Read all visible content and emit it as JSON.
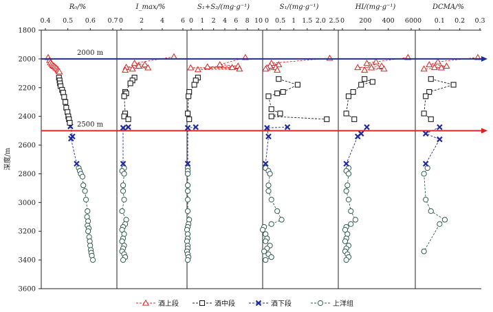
{
  "chart_data": {
    "type": "scatter",
    "y_axis": {
      "label": "深度/m",
      "lim": [
        1800,
        3600
      ],
      "ticks": [
        1800,
        2000,
        2200,
        2400,
        2600,
        2800,
        3000,
        3200,
        3400,
        3600
      ],
      "inverted": true
    },
    "reference_lines": [
      {
        "depth": 2000,
        "label": "2000 m",
        "color": "#1f2a9c"
      },
      {
        "depth": 2500,
        "label": "2500 m",
        "color": "#e02020"
      }
    ],
    "legend": {
      "position": "bottom",
      "entries": [
        {
          "key": "jiu_upper",
          "label": "酒上段",
          "color": "#e02020",
          "marker": "triangle"
        },
        {
          "key": "jiu_middle",
          "label": "酒中段",
          "color": "#1a1a1a",
          "marker": "square"
        },
        {
          "key": "jiu_lower",
          "label": "酒下段",
          "color": "#1f2a9c",
          "marker": "x"
        },
        {
          "key": "shangyang",
          "label": "上洋组",
          "color": "#2e5b4f",
          "marker": "circle"
        }
      ]
    },
    "panels": [
      {
        "id": "ro",
        "title": "R₀/%",
        "xlim": [
          0.35,
          0.7
        ],
        "ticks": [
          0.4,
          0.5,
          0.6,
          0.7
        ],
        "tick_labels": [
          "0.4",
          "0.5",
          "0.6",
          "0.7"
        ],
        "minor_tick_labels": [
          "0.4",
          "0.5",
          "0.6",
          "0.7"
        ],
        "series": {
          "jiu_upper": [
            [
              0.383,
              1990
            ],
            [
              0.39,
              2010
            ],
            [
              0.394,
              2025
            ],
            [
              0.4,
              2035
            ],
            [
              0.405,
              2045
            ],
            [
              0.41,
              2050
            ],
            [
              0.415,
              2055
            ],
            [
              0.42,
              2062
            ],
            [
              0.425,
              2068
            ],
            [
              0.43,
              2075
            ],
            [
              0.433,
              2083
            ],
            [
              0.437,
              2090
            ]
          ],
          "jiu_middle": [
            [
              0.435,
              2130
            ],
            [
              0.438,
              2150
            ],
            [
              0.44,
              2170
            ],
            [
              0.443,
              2190
            ],
            [
              0.45,
              2215
            ],
            [
              0.455,
              2235
            ],
            [
              0.46,
              2265
            ],
            [
              0.466,
              2300
            ],
            [
              0.47,
              2340
            ],
            [
              0.476,
              2370
            ],
            [
              0.48,
              2400
            ],
            [
              0.483,
              2420
            ],
            [
              0.487,
              2445
            ]
          ],
          "jiu_lower": [
            [
              0.49,
              2470
            ],
            [
              0.5,
              2540
            ],
            [
              0.493,
              2555
            ],
            [
              0.52,
              2730
            ]
          ],
          "shangyang": [
            [
              0.53,
              2760
            ],
            [
              0.535,
              2780
            ],
            [
              0.54,
              2800
            ],
            [
              0.548,
              2820
            ],
            [
              0.552,
              2880
            ],
            [
              0.56,
              2920
            ],
            [
              0.565,
              2980
            ],
            [
              0.572,
              3060
            ],
            [
              0.57,
              3100
            ],
            [
              0.575,
              3130
            ],
            [
              0.572,
              3160
            ],
            [
              0.578,
              3180
            ],
            [
              0.575,
              3200
            ],
            [
              0.58,
              3240
            ],
            [
              0.583,
              3270
            ],
            [
              0.585,
              3300
            ],
            [
              0.588,
              3330
            ],
            [
              0.59,
              3350
            ],
            [
              0.593,
              3370
            ],
            [
              0.598,
              3400
            ]
          ]
        }
      },
      {
        "id": "imax",
        "title": "I_max/%",
        "xlim": [
          -0.5,
          6
        ],
        "ticks": [
          0,
          2,
          4,
          6
        ],
        "tick_labels": [
          "0",
          "2",
          "4",
          "6"
        ],
        "series": {
          "jiu_upper": [
            [
              5.0,
              1985
            ],
            [
              1.2,
              2030
            ],
            [
              2.2,
              2040
            ],
            [
              1.6,
              2050
            ],
            [
              0.4,
              2058
            ],
            [
              2.5,
              2062
            ],
            [
              1.0,
              2070
            ],
            [
              0.3,
              2078
            ]
          ],
          "jiu_middle": [
            [
              1.2,
              2130
            ],
            [
              1.0,
              2150
            ],
            [
              0.8,
              2170
            ],
            [
              0.3,
              2230
            ],
            [
              0.4,
              2240
            ],
            [
              0.2,
              2260
            ],
            [
              0.3,
              2380
            ],
            [
              0.2,
              2400
            ],
            [
              0.6,
              2420
            ]
          ],
          "jiu_lower": [
            [
              0.6,
              2475
            ],
            [
              0.1,
              2480
            ],
            [
              0.1,
              2730
            ]
          ],
          "shangyang": [
            [
              0.2,
              2760
            ],
            [
              0.0,
              2780
            ],
            [
              0.2,
              2800
            ],
            [
              0.1,
              2880
            ],
            [
              0.1,
              2920
            ],
            [
              0.2,
              2980
            ],
            [
              0.0,
              3060
            ],
            [
              0.4,
              3120
            ],
            [
              0.3,
              3150
            ],
            [
              0.1,
              3170
            ],
            [
              0.0,
              3190
            ],
            [
              0.2,
              3220
            ],
            [
              0.1,
              3250
            ],
            [
              0.0,
              3270
            ],
            [
              0.2,
              3300
            ],
            [
              0.1,
              3320
            ],
            [
              0.0,
              3340
            ],
            [
              0.2,
              3360
            ],
            [
              0.3,
              3380
            ],
            [
              0.1,
              3400
            ]
          ]
        }
      },
      {
        "id": "s1s2",
        "title": "S₁+S₂/(mg·g⁻¹)",
        "xlim": [
          0,
          10
        ],
        "ticks": [
          0,
          1,
          2,
          3,
          4,
          5,
          6,
          7,
          8,
          9,
          10
        ],
        "tick_labels": [
          "0",
          "1",
          "2",
          "4",
          "6",
          "8",
          "10"
        ],
        "series": {
          "jiu_upper": [
            [
              8.0,
              1990
            ],
            [
              4.5,
              2040
            ],
            [
              7.0,
              2050
            ],
            [
              2.8,
              2055
            ],
            [
              6.2,
              2060
            ],
            [
              0.5,
              2062
            ],
            [
              7.2,
              2070
            ],
            [
              1.5,
              2075
            ]
          ],
          "jiu_middle": [
            [
              1.5,
              2130
            ],
            [
              1.2,
              2150
            ],
            [
              1.0,
              2180
            ],
            [
              0.3,
              2230
            ],
            [
              0.2,
              2260
            ],
            [
              0.1,
              2380
            ],
            [
              0.3,
              2420
            ]
          ],
          "jiu_lower": [
            [
              1.2,
              2475
            ],
            [
              0.1,
              2480
            ],
            [
              0.1,
              2730
            ]
          ],
          "shangyang": [
            [
              0.1,
              2760
            ],
            [
              0.1,
              2780
            ],
            [
              0.1,
              2800
            ],
            [
              0.1,
              2880
            ],
            [
              0.1,
              2920
            ],
            [
              0.1,
              2980
            ],
            [
              0.1,
              3060
            ],
            [
              0.3,
              3120
            ],
            [
              0.2,
              3150
            ],
            [
              0.1,
              3170
            ],
            [
              0.0,
              3190
            ],
            [
              0.1,
              3220
            ],
            [
              0.1,
              3250
            ],
            [
              0.0,
              3270
            ],
            [
              0.1,
              3300
            ],
            [
              0.1,
              3320
            ],
            [
              0.0,
              3340
            ],
            [
              0.1,
              3360
            ],
            [
              0.2,
              3380
            ],
            [
              0.1,
              3400
            ]
          ]
        }
      },
      {
        "id": "s1",
        "title": "S₁/(mg·g⁻¹)",
        "xlim": [
          0,
          2.5
        ],
        "ticks": [
          0,
          0.5,
          1,
          1.5,
          2,
          2.5
        ],
        "tick_labels": [
          "0",
          "0.5",
          "1",
          "1.5",
          "2.0",
          "2.5"
        ],
        "series": {
          "jiu_upper": [
            [
              2.3,
              1995
            ],
            [
              0.3,
              2030
            ],
            [
              0.55,
              2040
            ],
            [
              0.25,
              2050
            ],
            [
              0.45,
              2060
            ],
            [
              0.15,
              2062
            ],
            [
              0.1,
              2070
            ],
            [
              0.5,
              2078
            ]
          ],
          "jiu_middle": [
            [
              0.55,
              2140
            ],
            [
              1.2,
              2180
            ],
            [
              0.7,
              2230
            ],
            [
              0.5,
              2240
            ],
            [
              0.2,
              2260
            ],
            [
              0.3,
              2350
            ],
            [
              0.6,
              2380
            ],
            [
              0.3,
              2400
            ],
            [
              2.2,
              2420
            ]
          ],
          "jiu_lower": [
            [
              0.85,
              2475
            ],
            [
              0.15,
              2480
            ],
            [
              0.1,
              2730
            ],
            [
              0.2,
              2540
            ]
          ],
          "shangyang": [
            [
              0.1,
              2760
            ],
            [
              0.2,
              2780
            ],
            [
              0.25,
              2800
            ],
            [
              0.2,
              2880
            ],
            [
              0.2,
              2920
            ],
            [
              0.3,
              2980
            ],
            [
              0.5,
              3060
            ],
            [
              0.65,
              3120
            ],
            [
              0.3,
              3150
            ],
            [
              0.05,
              3170
            ],
            [
              0.0,
              3190
            ],
            [
              0.1,
              3220
            ],
            [
              0.15,
              3250
            ],
            [
              0.1,
              3270
            ],
            [
              0.25,
              3300
            ],
            [
              0.15,
              3320
            ],
            [
              0.05,
              3340
            ],
            [
              0.2,
              3360
            ],
            [
              0.3,
              3380
            ],
            [
              0.1,
              3400
            ]
          ]
        }
      },
      {
        "id": "hi",
        "title": "HI/(mg·g⁻¹)",
        "xlim": [
          -50,
          600
        ],
        "ticks": [
          0,
          200,
          400,
          600
        ],
        "tick_labels": [
          "0",
          "200",
          "400",
          "600"
        ],
        "series": {
          "jiu_upper": [
            [
              560,
              1990
            ],
            [
              280,
              2020
            ],
            [
              200,
              2030
            ],
            [
              330,
              2050
            ],
            [
              120,
              2060
            ],
            [
              240,
              2062
            ],
            [
              350,
              2070
            ],
            [
              180,
              2078
            ]
          ],
          "jiu_middle": [
            [
              180,
              2140
            ],
            [
              250,
              2160
            ],
            [
              150,
              2180
            ],
            [
              80,
              2230
            ],
            [
              40,
              2260
            ],
            [
              20,
              2380
            ],
            [
              90,
              2420
            ]
          ],
          "jiu_lower": [
            [
              200,
              2475
            ],
            [
              120,
              2540
            ],
            [
              150,
              2520
            ],
            [
              20,
              2730
            ]
          ],
          "shangyang": [
            [
              40,
              2760
            ],
            [
              20,
              2780
            ],
            [
              40,
              2800
            ],
            [
              30,
              2880
            ],
            [
              20,
              2920
            ],
            [
              40,
              2980
            ],
            [
              60,
              3060
            ],
            [
              100,
              3120
            ],
            [
              60,
              3150
            ],
            [
              20,
              3170
            ],
            [
              10,
              3190
            ],
            [
              30,
              3220
            ],
            [
              20,
              3250
            ],
            [
              10,
              3270
            ],
            [
              40,
              3300
            ],
            [
              20,
              3320
            ],
            [
              10,
              3340
            ],
            [
              30,
              3360
            ],
            [
              40,
              3380
            ],
            [
              20,
              3400
            ]
          ]
        }
      },
      {
        "id": "dcma",
        "title": "DCMA/%",
        "xlim": [
          -0.03,
          0.35
        ],
        "ticks": [
          0,
          0.1,
          0.2,
          0.3
        ],
        "tick_labels": [
          "0",
          "0.1",
          "0.2",
          "0.3"
        ],
        "series": {
          "jiu_upper": [
            [
              0.33,
              1990
            ],
            [
              0.1,
              2020
            ],
            [
              0.05,
              2040
            ],
            [
              0.15,
              2050
            ],
            [
              0.08,
              2060
            ],
            [
              0.12,
              2062
            ],
            [
              0.02,
              2070
            ]
          ],
          "jiu_middle": [
            [
              0.06,
              2140
            ],
            [
              0.19,
              2180
            ],
            [
              0.05,
              2230
            ],
            [
              0.03,
              2260
            ],
            [
              0.02,
              2380
            ],
            [
              0.06,
              2420
            ]
          ],
          "jiu_lower": [
            [
              0.11,
              2475
            ],
            [
              0.03,
              2520
            ],
            [
              0.11,
              2560
            ],
            [
              0.03,
              2730
            ]
          ],
          "shangyang": [
            [
              0.04,
              2760
            ],
            [
              0.02,
              2800
            ],
            [
              0.03,
              2980
            ],
            [
              0.06,
              3060
            ],
            [
              0.14,
              3120
            ],
            [
              0.11,
              3150
            ],
            [
              0.02,
              3340
            ]
          ]
        }
      }
    ]
  }
}
